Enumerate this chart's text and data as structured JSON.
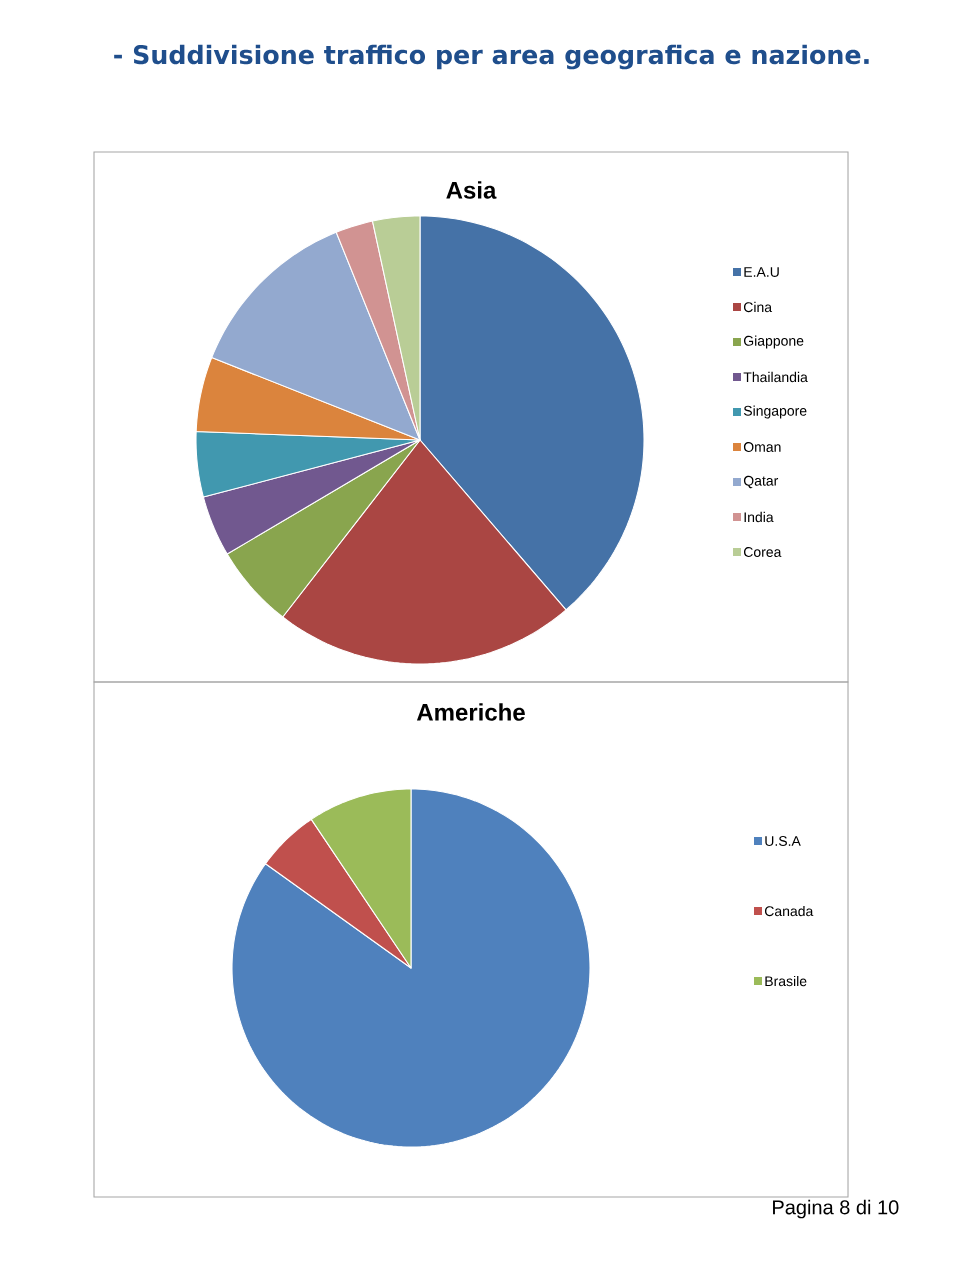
{
  "chart_data": [
    {
      "type": "pie",
      "title": "Asia",
      "categories": [
        "E.A.U",
        "Cina",
        "Giappone",
        "Thailandia",
        "Singapore",
        "Oman",
        "Qatar",
        "India",
        "Corea"
      ],
      "values": [
        38.7,
        21.8,
        6.0,
        4.4,
        4.7,
        5.4,
        12.9,
        2.7,
        3.4
      ],
      "colors": [
        "#4572a7",
        "#aa4643",
        "#89a54e",
        "#71588f",
        "#4198af",
        "#db843d",
        "#93a9cf",
        "#d19392",
        "#b9cd96"
      ],
      "legend": "right",
      "annotations": [
        "-  Suddivisione traffico per area geografica e nazione."
      ]
    },
    {
      "type": "pie",
      "title": "Americhe",
      "categories": [
        "U.S.A",
        "Canada",
        "Brasile"
      ],
      "values": [
        84.9,
        5.7,
        9.4
      ],
      "colors": [
        "#4f81bd",
        "#c0504d",
        "#9bbb59"
      ],
      "legend": "right",
      "annotations": [
        "Pagina 8 di 10"
      ]
    }
  ]
}
